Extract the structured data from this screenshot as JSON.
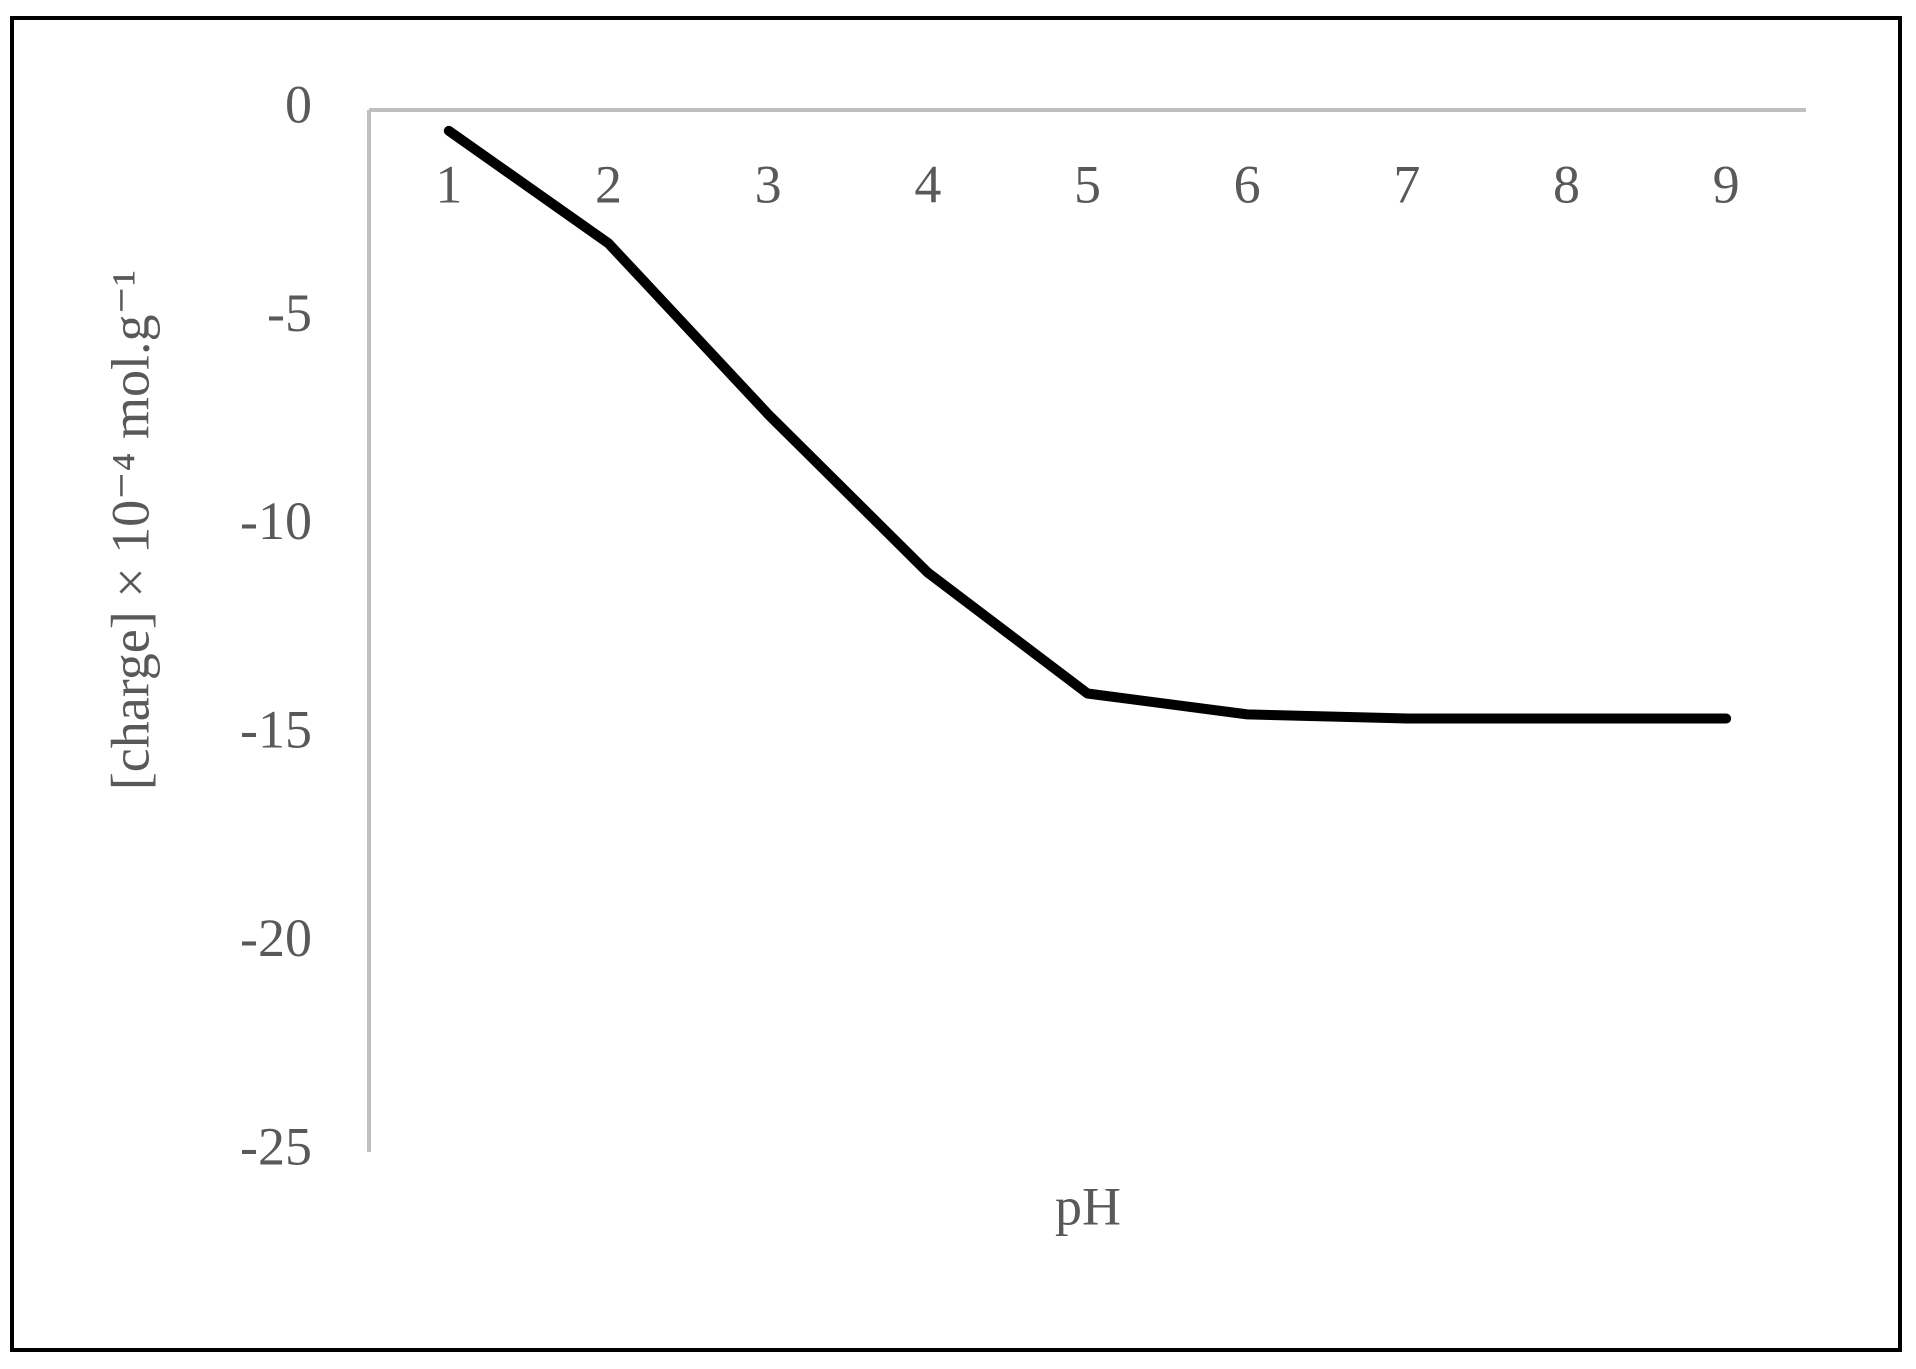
{
  "chart_data": {
    "type": "line",
    "xlabel": "pH",
    "ylabel": "[charge] × 10⁻⁴ mol.g⁻¹",
    "categories": [
      "1",
      "2",
      "3",
      "4",
      "5",
      "6",
      "7",
      "8",
      "9"
    ],
    "series": [
      {
        "color": "#000000",
        "values": [
          -0.5,
          -3.2,
          -7.3,
          -11.1,
          -14.0,
          -14.5,
          -14.6,
          -14.6,
          -14.6
        ]
      }
    ],
    "ylim": [
      -25,
      0
    ],
    "yticks": [
      0,
      -5,
      -10,
      -15,
      -20,
      -25
    ],
    "grid": false
  }
}
